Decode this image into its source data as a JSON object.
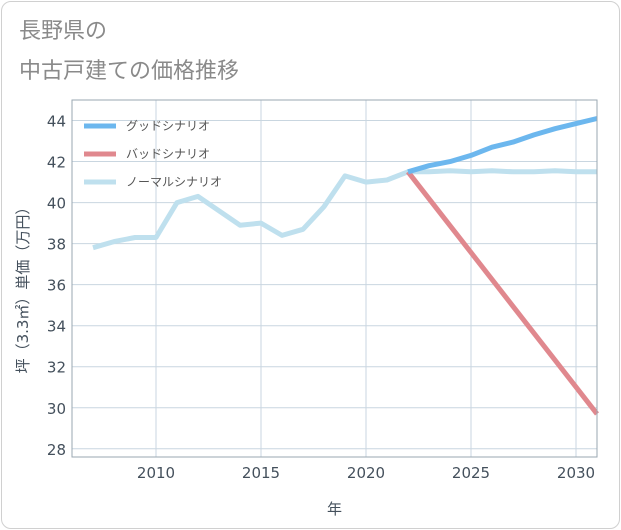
{
  "title": {
    "line1": "長野県の",
    "line2": "中古戸建ての価格推移"
  },
  "chart_data": {
    "type": "line",
    "title": "長野県の中古戸建ての価格推移",
    "xlabel": "年",
    "ylabel": "坪（3.3㎡）単価（万円）",
    "xlim": [
      2006,
      2031
    ],
    "ylim": [
      27.6,
      45
    ],
    "x_ticks": [
      2010,
      2015,
      2020,
      2025,
      2030
    ],
    "y_ticks": [
      28,
      30,
      32,
      34,
      36,
      38,
      40,
      42,
      44
    ],
    "grid": true,
    "legend_position": "top-left",
    "series": [
      {
        "name": "グッドシナリオ",
        "color": "#6cb7ee",
        "x": [
          2022,
          2023,
          2024,
          2025,
          2026,
          2027,
          2028,
          2029,
          2030,
          2031
        ],
        "values": [
          41.5,
          41.8,
          42.0,
          42.3,
          42.7,
          42.95,
          43.3,
          43.6,
          43.85,
          44.1
        ]
      },
      {
        "name": "バッドシナリオ",
        "color": "#e0888e",
        "x": [
          2022,
          2031
        ],
        "values": [
          41.5,
          29.7
        ]
      },
      {
        "name": "ノーマルシナリオ",
        "color": "#bfe0ee",
        "x": [
          2007,
          2008,
          2009,
          2010,
          2011,
          2012,
          2013,
          2014,
          2015,
          2016,
          2017,
          2018,
          2019,
          2020,
          2021,
          2022,
          2023,
          2024,
          2025,
          2026,
          2027,
          2028,
          2029,
          2030,
          2031
        ],
        "values": [
          37.8,
          38.1,
          38.3,
          38.3,
          40.0,
          40.3,
          39.6,
          38.9,
          39.0,
          38.4,
          38.7,
          39.8,
          41.3,
          41.0,
          41.1,
          41.5,
          41.5,
          41.55,
          41.5,
          41.55,
          41.5,
          41.5,
          41.55,
          41.5,
          41.5
        ]
      }
    ]
  }
}
